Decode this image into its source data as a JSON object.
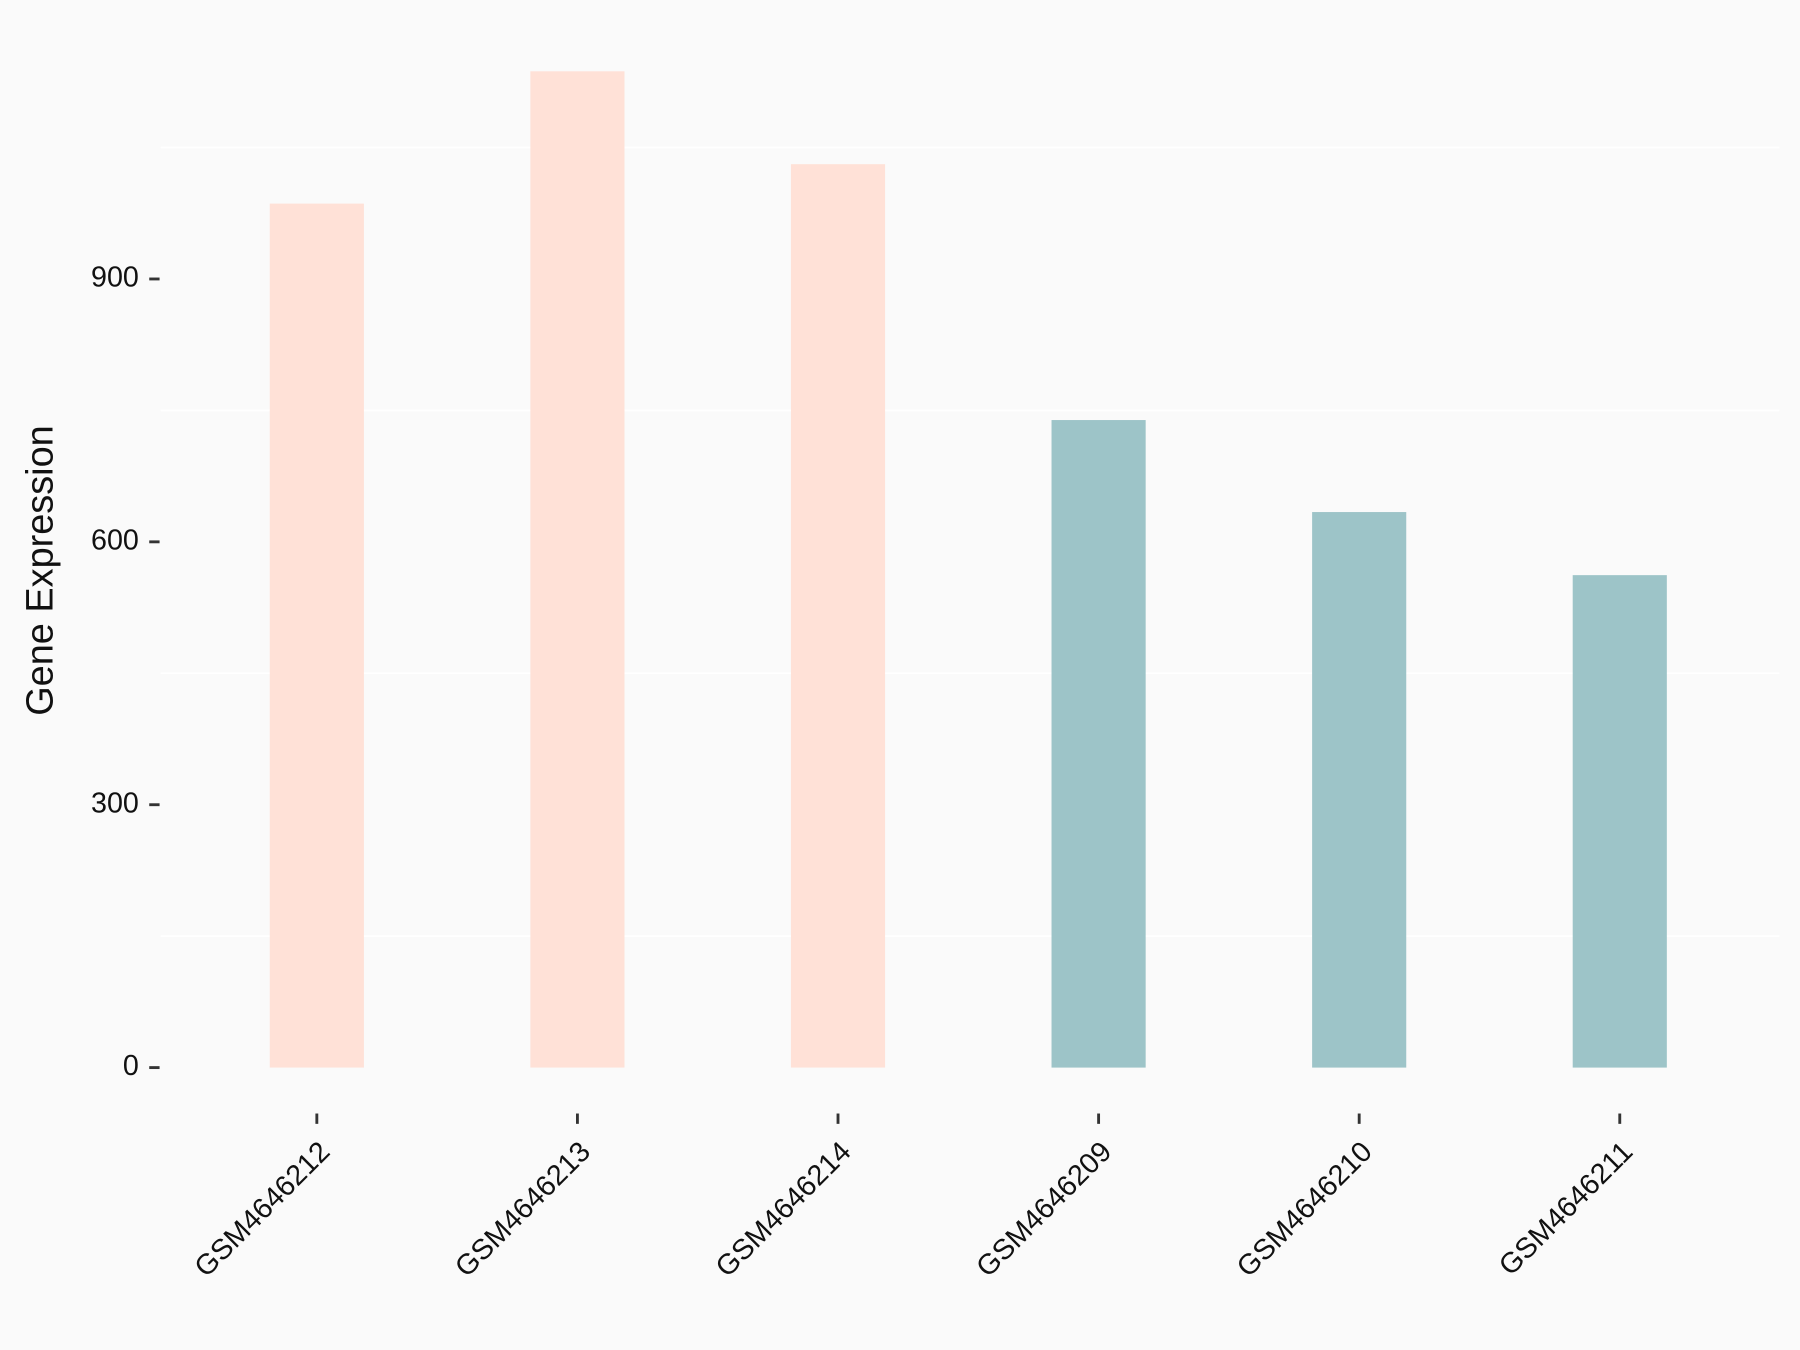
{
  "chart_data": {
    "type": "bar",
    "y_label": "Gene Expression",
    "categories": [
      "GSM4646212",
      "GSM4646213",
      "GSM4646214",
      "GSM4646209",
      "GSM4646210",
      "GSM4646211"
    ],
    "values": [
      986,
      1137,
      1031,
      739,
      634,
      562
    ],
    "colors": [
      "#ffe1d7",
      "#ffe1d7",
      "#ffe1d7",
      "#9dc4c8",
      "#9dc4c8",
      "#9dc4c8"
    ],
    "ylim": [
      -57,
      1194
    ],
    "yticks": [
      0,
      300,
      600,
      900
    ],
    "minor_yticks": [
      150,
      450,
      750,
      1050
    ],
    "grid": true
  }
}
